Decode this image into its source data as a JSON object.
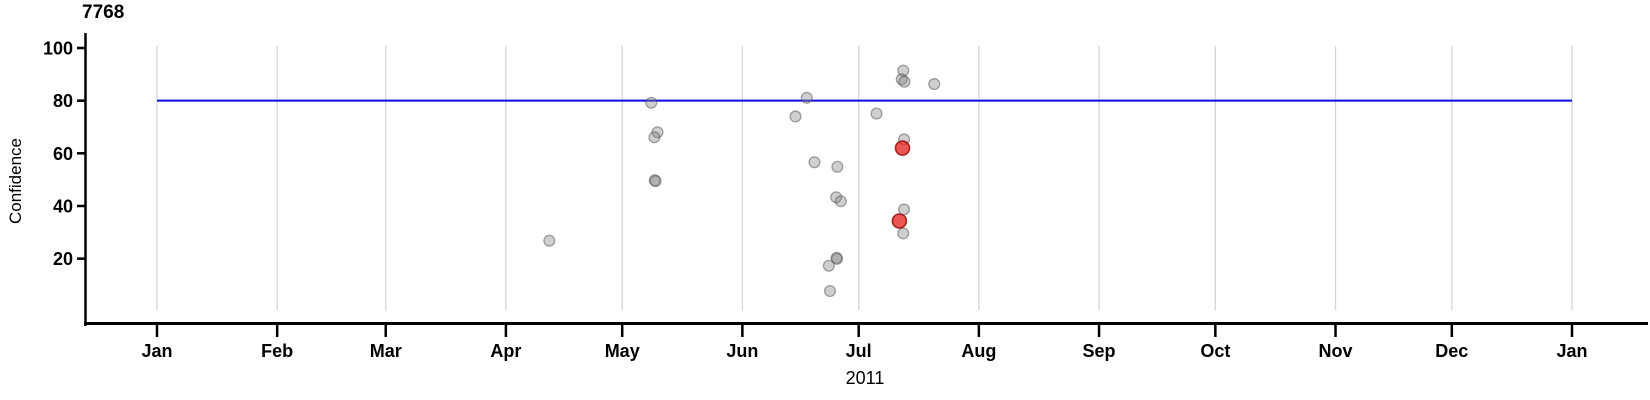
{
  "figure": {
    "title": "7768",
    "x_axis_title": "2011",
    "y_axis_title": "Confidence"
  },
  "chart_data": {
    "type": "scatter",
    "title": "7768",
    "xlabel": "2011",
    "ylabel": "Confidence",
    "x_axis": {
      "tick_labels": [
        "Jan",
        "Feb",
        "Mar",
        "Apr",
        "May",
        "Jun",
        "Jul",
        "Aug",
        "Sep",
        "Oct",
        "Nov",
        "Dec",
        "Jan"
      ],
      "tick_days": [
        0,
        31,
        59,
        90,
        120,
        151,
        181,
        212,
        243,
        273,
        304,
        334,
        365
      ],
      "range_days": [
        0,
        365
      ],
      "grid": true
    },
    "y_axis": {
      "tick_labels": [
        "20",
        "40",
        "60",
        "80",
        "100"
      ],
      "tick_values": [
        20,
        40,
        60,
        80,
        100
      ],
      "range": [
        0,
        103
      ],
      "grid": false
    },
    "reference_line": {
      "y": 80,
      "span_days": [
        0,
        365
      ],
      "color": "#0a0ae0"
    },
    "colors": {
      "gray_point_fill": "rgba(128,128,128,0.38)",
      "gray_point_stroke": "rgba(80,80,80,0.5)",
      "red_point_fill": "rgba(230,45,40,0.8)",
      "red_point_stroke": "rgba(160,20,20,0.9)",
      "gridline": "#d6d6d6",
      "axis": "#000000",
      "reference_line": "#0a0ae0"
    },
    "legend": null,
    "points": [
      {
        "date": "Apr 12",
        "day": 101.2,
        "value": 26.8,
        "color": "gray"
      },
      {
        "date": "May 8",
        "day": 127.5,
        "value": 79.2,
        "color": "gray"
      },
      {
        "date": "May 10",
        "day": 129.1,
        "value": 68.0,
        "color": "gray"
      },
      {
        "date": "May 9",
        "day": 128.3,
        "value": 66.1,
        "color": "gray"
      },
      {
        "date": "May 9",
        "day": 128.4,
        "value": 49.8,
        "color": "gray"
      },
      {
        "date": "May 9",
        "day": 128.6,
        "value": 49.4,
        "color": "gray"
      },
      {
        "date": "Jun 15",
        "day": 164.7,
        "value": 74.0,
        "color": "gray"
      },
      {
        "date": "Jun 18",
        "day": 167.6,
        "value": 81.1,
        "color": "gray"
      },
      {
        "date": "Jun 19",
        "day": 169.6,
        "value": 56.6,
        "color": "gray"
      },
      {
        "date": "Jun 25",
        "day": 175.5,
        "value": 54.9,
        "color": "gray"
      },
      {
        "date": "Jun 25",
        "day": 175.2,
        "value": 43.3,
        "color": "gray"
      },
      {
        "date": "Jun 26",
        "day": 176.4,
        "value": 41.8,
        "color": "gray"
      },
      {
        "date": "Jun 23",
        "day": 173.3,
        "value": 17.3,
        "color": "gray"
      },
      {
        "date": "Jun 25",
        "day": 175.3,
        "value": 20.3,
        "color": "gray"
      },
      {
        "date": "Jun 25",
        "day": 175.4,
        "value": 19.9,
        "color": "gray"
      },
      {
        "date": "Jun 24",
        "day": 173.6,
        "value": 7.7,
        "color": "gray"
      },
      {
        "date": "Jul 5",
        "day": 185.6,
        "value": 75.1,
        "color": "gray"
      },
      {
        "date": "Jul 12",
        "day": 192.5,
        "value": 91.4,
        "color": "gray"
      },
      {
        "date": "Jul 12",
        "day": 192.1,
        "value": 88.1,
        "color": "gray"
      },
      {
        "date": "Jul 12",
        "day": 192.8,
        "value": 87.2,
        "color": "gray"
      },
      {
        "date": "Jul 12",
        "day": 192.7,
        "value": 65.3,
        "color": "gray"
      },
      {
        "date": "Jul 12",
        "day": 192.7,
        "value": 38.7,
        "color": "gray"
      },
      {
        "date": "Jul 12",
        "day": 192.5,
        "value": 29.6,
        "color": "gray"
      },
      {
        "date": "Jul 20",
        "day": 200.5,
        "value": 86.3,
        "color": "gray"
      },
      {
        "date": "Jul 12",
        "day": 192.3,
        "value": 62.0,
        "color": "red"
      },
      {
        "date": "Jul 11",
        "day": 191.5,
        "value": 34.3,
        "color": "red"
      }
    ]
  }
}
